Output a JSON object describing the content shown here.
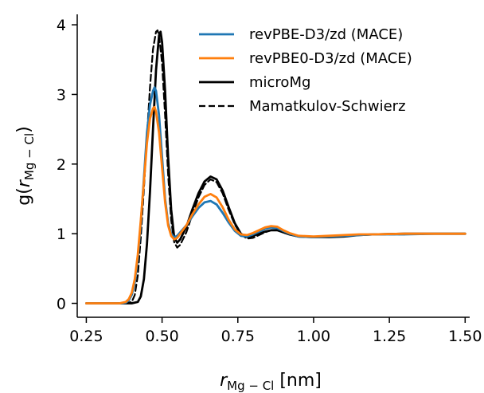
{
  "chart_data": {
    "type": "line",
    "xlabel": {
      "symbol": "r",
      "subscript": "Mg − Cl",
      "unit": " [nm]"
    },
    "ylabel": {
      "prefix": "g(",
      "symbol": "r",
      "subscript": "Mg − Cl",
      "suffix": ")"
    },
    "xlim": [
      0.22,
      1.515
    ],
    "ylim": [
      -0.2,
      4.15
    ],
    "xticks": [
      0.25,
      0.5,
      0.75,
      1.0,
      1.25,
      1.5
    ],
    "xtick_labels": [
      "0.25",
      "0.50",
      "0.75",
      "1.00",
      "1.25",
      "1.50"
    ],
    "yticks": [
      0,
      1,
      2,
      3,
      4
    ],
    "ytick_labels": [
      "0",
      "1",
      "2",
      "3",
      "4"
    ],
    "grid": false,
    "legend_position": "top-right",
    "series": [
      {
        "name": "revPBE-D3/zd (MACE)",
        "color": "#1f77b4",
        "style": "solid",
        "points": [
          [
            0.25,
            0
          ],
          [
            0.36,
            0
          ],
          [
            0.38,
            0.01
          ],
          [
            0.39,
            0.04
          ],
          [
            0.4,
            0.12
          ],
          [
            0.41,
            0.3
          ],
          [
            0.42,
            0.65
          ],
          [
            0.43,
            1.15
          ],
          [
            0.44,
            1.8
          ],
          [
            0.45,
            2.45
          ],
          [
            0.46,
            2.85
          ],
          [
            0.47,
            3.05
          ],
          [
            0.475,
            3.1
          ],
          [
            0.48,
            3.05
          ],
          [
            0.49,
            2.7
          ],
          [
            0.5,
            2.1
          ],
          [
            0.51,
            1.5
          ],
          [
            0.52,
            1.15
          ],
          [
            0.53,
            1.0
          ],
          [
            0.54,
            0.95
          ],
          [
            0.55,
            0.97
          ],
          [
            0.56,
            1.02
          ],
          [
            0.58,
            1.12
          ],
          [
            0.6,
            1.25
          ],
          [
            0.62,
            1.37
          ],
          [
            0.64,
            1.45
          ],
          [
            0.66,
            1.47
          ],
          [
            0.68,
            1.42
          ],
          [
            0.7,
            1.3
          ],
          [
            0.72,
            1.16
          ],
          [
            0.74,
            1.04
          ],
          [
            0.76,
            0.97
          ],
          [
            0.78,
            0.96
          ],
          [
            0.8,
            0.99
          ],
          [
            0.82,
            1.03
          ],
          [
            0.84,
            1.07
          ],
          [
            0.86,
            1.09
          ],
          [
            0.88,
            1.08
          ],
          [
            0.9,
            1.04
          ],
          [
            0.92,
            1.0
          ],
          [
            0.95,
            0.96
          ],
          [
            1.0,
            0.95
          ],
          [
            1.05,
            0.96
          ],
          [
            1.1,
            0.97
          ],
          [
            1.15,
            0.98
          ],
          [
            1.2,
            0.99
          ],
          [
            1.3,
            0.99
          ],
          [
            1.4,
            1.0
          ],
          [
            1.5,
            1.0
          ]
        ]
      },
      {
        "name": "revPBE0-D3/zd (MACE)",
        "color": "#ff7f0e",
        "style": "solid",
        "points": [
          [
            0.25,
            0
          ],
          [
            0.36,
            0
          ],
          [
            0.38,
            0.02
          ],
          [
            0.39,
            0.06
          ],
          [
            0.4,
            0.15
          ],
          [
            0.41,
            0.35
          ],
          [
            0.42,
            0.7
          ],
          [
            0.43,
            1.2
          ],
          [
            0.44,
            1.75
          ],
          [
            0.45,
            2.3
          ],
          [
            0.46,
            2.65
          ],
          [
            0.47,
            2.8
          ],
          [
            0.475,
            2.82
          ],
          [
            0.48,
            2.75
          ],
          [
            0.49,
            2.45
          ],
          [
            0.5,
            1.95
          ],
          [
            0.51,
            1.45
          ],
          [
            0.52,
            1.12
          ],
          [
            0.53,
            0.97
          ],
          [
            0.54,
            0.92
          ],
          [
            0.55,
            0.94
          ],
          [
            0.56,
            1.0
          ],
          [
            0.58,
            1.12
          ],
          [
            0.6,
            1.28
          ],
          [
            0.62,
            1.42
          ],
          [
            0.64,
            1.53
          ],
          [
            0.66,
            1.57
          ],
          [
            0.68,
            1.52
          ],
          [
            0.7,
            1.38
          ],
          [
            0.72,
            1.2
          ],
          [
            0.74,
            1.06
          ],
          [
            0.76,
            0.99
          ],
          [
            0.78,
            0.98
          ],
          [
            0.8,
            1.01
          ],
          [
            0.82,
            1.05
          ],
          [
            0.84,
            1.09
          ],
          [
            0.86,
            1.11
          ],
          [
            0.88,
            1.1
          ],
          [
            0.9,
            1.05
          ],
          [
            0.92,
            1.01
          ],
          [
            0.95,
            0.97
          ],
          [
            1.0,
            0.96
          ],
          [
            1.05,
            0.97
          ],
          [
            1.1,
            0.98
          ],
          [
            1.15,
            0.99
          ],
          [
            1.2,
            0.99
          ],
          [
            1.3,
            1.0
          ],
          [
            1.4,
            1.0
          ],
          [
            1.5,
            1.0
          ]
        ]
      },
      {
        "name": "microMg",
        "color": "#000000",
        "style": "solid",
        "points": [
          [
            0.25,
            0
          ],
          [
            0.4,
            0
          ],
          [
            0.42,
            0.02
          ],
          [
            0.43,
            0.1
          ],
          [
            0.44,
            0.35
          ],
          [
            0.45,
            0.85
          ],
          [
            0.46,
            1.6
          ],
          [
            0.47,
            2.5
          ],
          [
            0.48,
            3.35
          ],
          [
            0.49,
            3.85
          ],
          [
            0.495,
            3.9
          ],
          [
            0.5,
            3.75
          ],
          [
            0.51,
            3.05
          ],
          [
            0.52,
            2.1
          ],
          [
            0.53,
            1.35
          ],
          [
            0.54,
            0.95
          ],
          [
            0.55,
            0.87
          ],
          [
            0.56,
            0.92
          ],
          [
            0.58,
            1.1
          ],
          [
            0.6,
            1.35
          ],
          [
            0.62,
            1.58
          ],
          [
            0.64,
            1.75
          ],
          [
            0.66,
            1.82
          ],
          [
            0.68,
            1.78
          ],
          [
            0.7,
            1.62
          ],
          [
            0.72,
            1.38
          ],
          [
            0.74,
            1.15
          ],
          [
            0.76,
            1.0
          ],
          [
            0.78,
            0.95
          ],
          [
            0.8,
            0.97
          ],
          [
            0.82,
            1.0
          ],
          [
            0.84,
            1.03
          ],
          [
            0.86,
            1.05
          ],
          [
            0.88,
            1.05
          ],
          [
            0.9,
            1.02
          ],
          [
            0.92,
            0.99
          ],
          [
            0.95,
            0.96
          ],
          [
            1.0,
            0.95
          ],
          [
            1.05,
            0.95
          ],
          [
            1.1,
            0.96
          ],
          [
            1.15,
            0.98
          ],
          [
            1.2,
            0.99
          ],
          [
            1.3,
            1.0
          ],
          [
            1.4,
            1.0
          ],
          [
            1.5,
            1.0
          ]
        ]
      },
      {
        "name": "Mamatkulov-Schwierz",
        "color": "#000000",
        "style": "dashed",
        "points": [
          [
            0.25,
            0
          ],
          [
            0.38,
            0
          ],
          [
            0.4,
            0.02
          ],
          [
            0.41,
            0.12
          ],
          [
            0.42,
            0.4
          ],
          [
            0.43,
            0.95
          ],
          [
            0.44,
            1.65
          ],
          [
            0.45,
            2.4
          ],
          [
            0.46,
            3.1
          ],
          [
            0.47,
            3.65
          ],
          [
            0.48,
            3.9
          ],
          [
            0.485,
            3.92
          ],
          [
            0.49,
            3.85
          ],
          [
            0.5,
            3.45
          ],
          [
            0.51,
            2.7
          ],
          [
            0.52,
            1.85
          ],
          [
            0.53,
            1.2
          ],
          [
            0.54,
            0.88
          ],
          [
            0.55,
            0.8
          ],
          [
            0.56,
            0.84
          ],
          [
            0.58,
            1.02
          ],
          [
            0.6,
            1.28
          ],
          [
            0.62,
            1.52
          ],
          [
            0.64,
            1.7
          ],
          [
            0.66,
            1.78
          ],
          [
            0.68,
            1.74
          ],
          [
            0.7,
            1.58
          ],
          [
            0.72,
            1.34
          ],
          [
            0.74,
            1.13
          ],
          [
            0.76,
            0.99
          ],
          [
            0.78,
            0.93
          ],
          [
            0.8,
            0.94
          ],
          [
            0.82,
            0.98
          ],
          [
            0.84,
            1.02
          ],
          [
            0.86,
            1.05
          ],
          [
            0.88,
            1.05
          ],
          [
            0.9,
            1.02
          ],
          [
            0.92,
            0.99
          ],
          [
            0.95,
            0.96
          ],
          [
            1.0,
            0.95
          ],
          [
            1.05,
            0.96
          ],
          [
            1.1,
            0.97
          ],
          [
            1.15,
            0.98
          ],
          [
            1.2,
            0.99
          ],
          [
            1.3,
            0.99
          ],
          [
            1.4,
            1.0
          ],
          [
            1.5,
            1.0
          ]
        ]
      }
    ]
  }
}
